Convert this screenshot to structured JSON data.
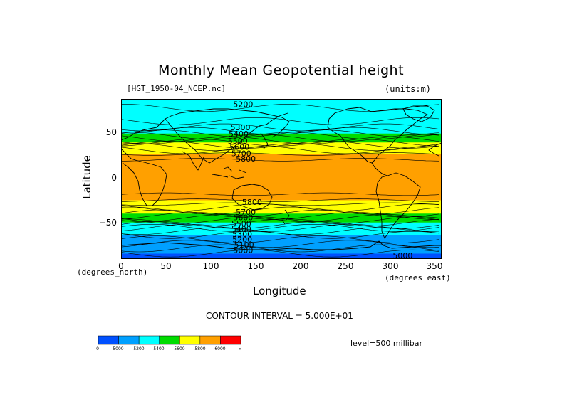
{
  "chart_data": {
    "type": "heatmap",
    "title": "Monthly Mean Geopotential height",
    "subtitle_left": "[HGT_1950-04_NCEP.nc]",
    "subtitle_right": "(units:m)",
    "xlabel": "Longitude",
    "ylabel": "Latitude",
    "x_units": "(degrees_east)",
    "y_units": "(degrees_north)",
    "xlim": [
      0,
      357.5
    ],
    "ylim": [
      -90,
      90
    ],
    "x_ticks": [
      "0",
      "50",
      "100",
      "150",
      "200",
      "250",
      "300",
      "350"
    ],
    "x_tick_values": [
      0,
      50,
      100,
      150,
      200,
      250,
      300,
      350
    ],
    "y_ticks": [
      "50",
      "0",
      "−50"
    ],
    "y_tick_values": [
      50,
      0,
      -50
    ],
    "contour_interval_text": "CONTOUR INTERVAL = 5.000E+01",
    "level_text": "level=500 millibar",
    "contour_labels": [
      {
        "text": "5200",
        "lon": 125,
        "lat": 84
      },
      {
        "text": "5300",
        "lon": 122,
        "lat": 58
      },
      {
        "text": "5400",
        "lon": 120,
        "lat": 51
      },
      {
        "text": "5500",
        "lon": 119,
        "lat": 43
      },
      {
        "text": "5600",
        "lon": 121,
        "lat": 36
      },
      {
        "text": "5700",
        "lon": 123,
        "lat": 29
      },
      {
        "text": "5800",
        "lon": 128,
        "lat": 23
      },
      {
        "text": "5800",
        "lon": 135,
        "lat": -26
      },
      {
        "text": "5700",
        "lon": 128,
        "lat": -37
      },
      {
        "text": "5600",
        "lon": 125,
        "lat": -43
      },
      {
        "text": "5500",
        "lon": 123,
        "lat": -50
      },
      {
        "text": "5400",
        "lon": 123,
        "lat": -56
      },
      {
        "text": "5300",
        "lon": 124,
        "lat": -62
      },
      {
        "text": "5200",
        "lon": 124,
        "lat": -68
      },
      {
        "text": "5100",
        "lon": 126,
        "lat": -74
      },
      {
        "text": "5000",
        "lon": 125,
        "lat": -80
      },
      {
        "text": "5000",
        "lon": 303,
        "lat": -86
      }
    ],
    "profile": {
      "lat": [
        90,
        80,
        70,
        60,
        55,
        50,
        45,
        40,
        35,
        30,
        25,
        20,
        10,
        0,
        -10,
        -20,
        -25,
        -30,
        -35,
        -40,
        -45,
        -50,
        -55,
        -60,
        -65,
        -70,
        -75,
        -80,
        -85,
        -90
      ],
      "height": [
        5200,
        5200,
        5220,
        5280,
        5330,
        5420,
        5520,
        5620,
        5720,
        5780,
        5830,
        5860,
        5880,
        5880,
        5875,
        5840,
        5790,
        5730,
        5660,
        5580,
        5480,
        5380,
        5300,
        5230,
        5180,
        5130,
        5080,
        5030,
        4990,
        4980
      ]
    },
    "colorbar": {
      "levels": [
        "0",
        "5000",
        "5200",
        "5400",
        "5600",
        "5800",
        "6000",
        "∞"
      ],
      "colors": [
        "#0050ff",
        "#00a0ff",
        "#00ffff",
        "#00dc00",
        "#ffff00",
        "#ffa000",
        "#ff0000"
      ]
    }
  }
}
